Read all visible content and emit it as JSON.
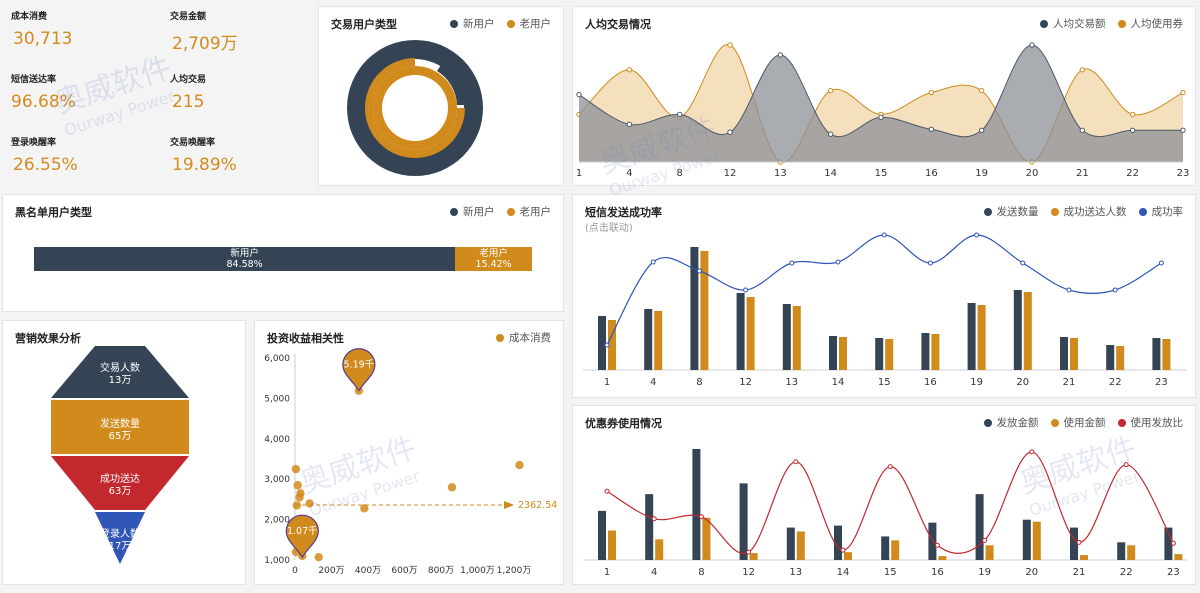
{
  "colors": {
    "navy": "#354454",
    "orange": "#d18a1c",
    "red": "#c3282e",
    "blue": "#2f55b6",
    "lightorange": "#f1d6a8",
    "grey": "#9aa5ad",
    "tan": "#b7ab98"
  },
  "kpis": [
    {
      "label": "成本消费",
      "value": "30,713"
    },
    {
      "label": "交易金额",
      "value": "2,709万"
    },
    {
      "label": "短信送达率",
      "value": "96.68%"
    },
    {
      "label": "人均交易",
      "value": "215"
    },
    {
      "label": "登录唤醒率",
      "value": "26.55%"
    },
    {
      "label": "交易唤醒率",
      "value": "19.89%"
    }
  ],
  "watermark": {
    "cn": "奥威软件",
    "en": "Ourway Power"
  },
  "donut": {
    "title": "交易用户类型",
    "legend": [
      "新用户",
      "老用户"
    ]
  },
  "blacklist": {
    "title": "黑名单用户类型",
    "legend": [
      "新用户",
      "老用户"
    ],
    "segments": [
      {
        "label": "新用户",
        "pct": "84.58%",
        "value": 84.58
      },
      {
        "label": "老用户",
        "pct": "15.42%",
        "value": 15.42
      }
    ]
  },
  "funnel": {
    "title": "营销效果分析",
    "stages": [
      {
        "name": "交易人数",
        "value": "13万"
      },
      {
        "name": "发送数量",
        "value": "65万"
      },
      {
        "name": "成功送达",
        "value": "63万"
      },
      {
        "name": "登录人数",
        "value": "17万"
      }
    ]
  },
  "scatter": {
    "title": "投资收益相关性",
    "legend": "成本消费",
    "pin_top": "5.19千",
    "pin_bottom": "1.07千",
    "avg_label": "2362.54",
    "chart_data": {
      "type": "scatter",
      "x_ticks": [
        "0",
        "200万",
        "400万",
        "600万",
        "800万",
        "1,000万",
        "1,200万"
      ],
      "y_ticks": [
        "1,000",
        "2,000",
        "3,000",
        "4,000",
        "5,000",
        "6,000"
      ],
      "xlim": [
        0,
        1200
      ],
      "ylim": [
        1000,
        6000
      ],
      "points": [
        [
          5,
          3250
        ],
        [
          15,
          2850
        ],
        [
          25,
          2550
        ],
        [
          30,
          2650
        ],
        [
          10,
          2350
        ],
        [
          5,
          1200
        ],
        [
          40,
          1100
        ],
        [
          80,
          2400
        ],
        [
          130,
          1070
        ],
        [
          380,
          2280
        ],
        [
          860,
          2800
        ],
        [
          1230,
          3350
        ],
        [
          350,
          5190
        ]
      ],
      "avg": 2362.54
    }
  },
  "avgTx": {
    "title": "人均交易情况",
    "legend": [
      "人均交易额",
      "人均使用券"
    ],
    "chart_data": {
      "type": "area",
      "categories": [
        "1",
        "4",
        "8",
        "12",
        "13",
        "14",
        "15",
        "16",
        "19",
        "20",
        "21",
        "22",
        "23"
      ],
      "series": [
        {
          "name": "人均交易额",
          "values": [
            68,
            38,
            48,
            30,
            108,
            28,
            45,
            33,
            32,
            118,
            32,
            32,
            32
          ]
        },
        {
          "name": "人均使用券",
          "values": [
            48,
            93,
            45,
            118,
            0,
            72,
            48,
            70,
            72,
            0,
            93,
            48,
            70
          ]
        }
      ]
    }
  },
  "sms": {
    "title": "短信发送成功率",
    "subtitle": "(点击联动)",
    "legend": [
      "发送数量",
      "成功送达人数",
      "成功率"
    ],
    "chart_data": {
      "type": "bar",
      "categories": [
        "1",
        "4",
        "8",
        "12",
        "13",
        "14",
        "15",
        "16",
        "19",
        "20",
        "21",
        "22",
        "23"
      ],
      "series": [
        {
          "name": "发送数量",
          "values": [
            54,
            61,
            123,
            77,
            66,
            34,
            32,
            37,
            67,
            80,
            33,
            25,
            32
          ]
        },
        {
          "name": "成功送达人数",
          "values": [
            50,
            59,
            119,
            73,
            64,
            33,
            31,
            36,
            65,
            78,
            32,
            24,
            31
          ]
        },
        {
          "name": "成功率",
          "values": [
            25,
            108,
            99,
            80,
            107,
            108,
            135,
            107,
            135,
            107,
            80,
            80,
            107
          ]
        }
      ]
    }
  },
  "coupon": {
    "title": "优惠券使用情况",
    "legend": [
      "发放金额",
      "使用金额",
      "使用发放比"
    ],
    "chart_data": {
      "type": "bar",
      "categories": [
        "1",
        "4",
        "8",
        "12",
        "13",
        "14",
        "15",
        "16",
        "19",
        "20",
        "21",
        "22",
        "23"
      ],
      "series": [
        {
          "name": "发放金额",
          "values": [
            50,
            67,
            113,
            78,
            33,
            35,
            24,
            38,
            67,
            41,
            33,
            18,
            33
          ]
        },
        {
          "name": "使用金额",
          "values": [
            30,
            21,
            43,
            7,
            29,
            8,
            20,
            4,
            15,
            39,
            5,
            15,
            6
          ]
        },
        {
          "name": "使用发放比",
          "values": [
            70,
            42,
            44,
            8,
            100,
            10,
            95,
            15,
            20,
            110,
            18,
            97,
            17
          ]
        }
      ]
    }
  }
}
